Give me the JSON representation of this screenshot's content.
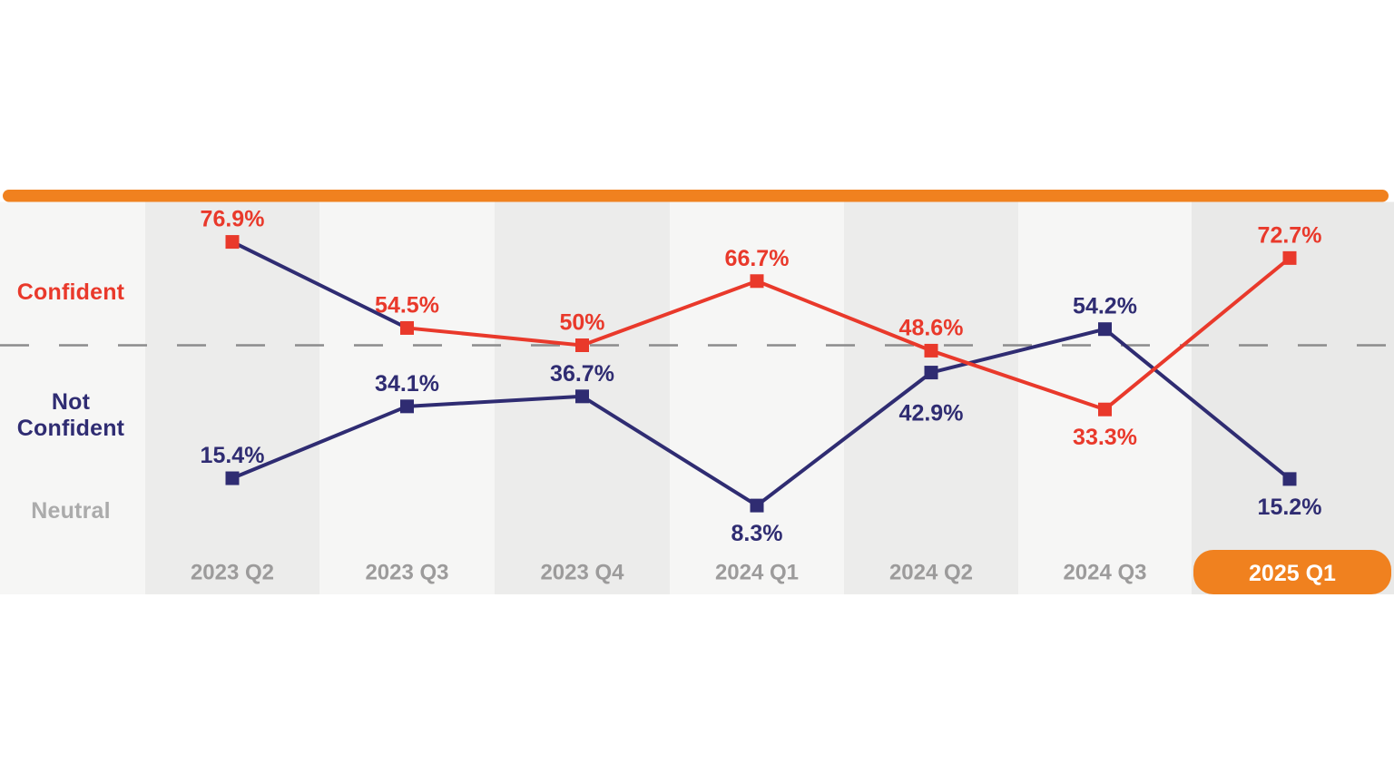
{
  "page": {
    "background_color": "#FFFFFF"
  },
  "accent_bar": {
    "color": "#F0811F"
  },
  "reference_line": {
    "value_percent": 50,
    "style": "dashed",
    "color": "#8C8C8C"
  },
  "columns": {
    "colors": [
      "#F6F6F5",
      "#ECECEB",
      "#F6F6F5",
      "#ECECEB",
      "#F6F6F5",
      "#ECECEB",
      "#F6F6F5",
      "#E9E9E8"
    ]
  },
  "legend": {
    "items": [
      {
        "id": "confident",
        "label": "Confident",
        "color": "#E9392B"
      },
      {
        "id": "not-confident",
        "label": "Not Confident",
        "color": "#2F2C72"
      },
      {
        "id": "neutral",
        "label": "Neutral",
        "color": "#ABABAB"
      }
    ]
  },
  "x_axis": {
    "label_color": "#9C9B9B",
    "highlight": {
      "label": "2025 Q1",
      "bg_color": "#F0811F",
      "text_color": "#FFFFFF"
    }
  },
  "chart_data": {
    "type": "line",
    "title": "",
    "xlabel": "",
    "ylabel": "",
    "grid": false,
    "legend_position": "left",
    "ylim": [
      -5,
      95
    ],
    "y_reference": 50,
    "categories": [
      "2023 Q2",
      "2023 Q3",
      "2023 Q4",
      "2024 Q1",
      "2024 Q2",
      "2024 Q3",
      "2025 Q1"
    ],
    "highlighted_category": "2025 Q1",
    "series": [
      {
        "name": "Confident",
        "color": "#E9392B",
        "values": [
          76.9,
          54.5,
          50,
          66.7,
          48.6,
          33.3,
          72.7
        ],
        "labels": [
          "76.9%",
          "54.5%",
          "50%",
          "66.7%",
          "48.6%",
          "33.3%",
          "72.7%"
        ],
        "label_placement": [
          "above",
          "above",
          "above",
          "above",
          "above",
          "below",
          "above"
        ],
        "segment_colors": [
          "#2F2C72",
          "#E9392B",
          "#E9392B",
          "#E9392B",
          "#E9392B",
          "#E9392B"
        ]
      },
      {
        "name": "Not Confident",
        "color": "#2F2C72",
        "values": [
          15.4,
          34.1,
          36.7,
          8.3,
          42.9,
          54.2,
          15.2
        ],
        "labels": [
          "15.4%",
          "34.1%",
          "36.7%",
          "8.3%",
          "42.9%",
          "54.2%",
          "15.2%"
        ],
        "label_placement": [
          "above",
          "above",
          "above",
          "below",
          "below-far",
          "above",
          "below"
        ],
        "segment_colors": [
          "#2F2C72",
          "#2F2C72",
          "#2F2C72",
          "#2F2C72",
          "#2F2C72",
          "#2F2C72"
        ]
      }
    ]
  }
}
